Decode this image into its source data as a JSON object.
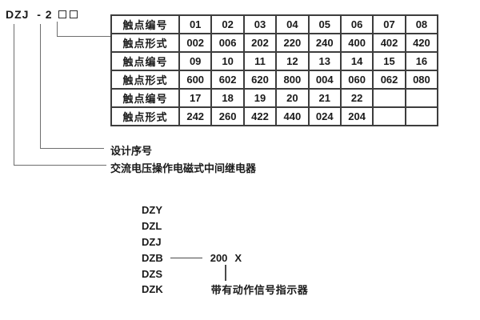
{
  "header": {
    "model_prefix": "DZJ",
    "separator": "-",
    "design_number": "2"
  },
  "callouts": {
    "design_serial_label": "设计序号",
    "relay_description_label": "交流电压操作电磁式中间继电器"
  },
  "table": {
    "rows": [
      {
        "label": "触点编号",
        "values": [
          "01",
          "02",
          "03",
          "04",
          "05",
          "06",
          "07",
          "08"
        ]
      },
      {
        "label": "触点形式",
        "values": [
          "002",
          "006",
          "202",
          "220",
          "240",
          "400",
          "402",
          "420"
        ]
      },
      {
        "label": "触点编号",
        "values": [
          "09",
          "10",
          "11",
          "12",
          "13",
          "14",
          "15",
          "16"
        ]
      },
      {
        "label": "触点形式",
        "values": [
          "600",
          "602",
          "620",
          "800",
          "004",
          "060",
          "062",
          "080"
        ]
      },
      {
        "label": "触点编号",
        "values": [
          "17",
          "18",
          "19",
          "20",
          "21",
          "22",
          "",
          ""
        ]
      },
      {
        "label": "触点形式",
        "values": [
          "242",
          "260",
          "422",
          "440",
          "024",
          "204",
          "",
          ""
        ]
      }
    ]
  },
  "series": {
    "models": [
      {
        "name": "DZY"
      },
      {
        "name": "DZL"
      },
      {
        "name": "DZJ"
      },
      {
        "name": "DZB",
        "suffix": "200",
        "variant": "X"
      },
      {
        "name": "DZS"
      },
      {
        "name": "DZK",
        "note": "带有动作信号指示器"
      }
    ]
  },
  "colors": {
    "text": "#1a1a1a",
    "table_border": "#3d3d3d",
    "leader_line": "#6e6e6e"
  }
}
